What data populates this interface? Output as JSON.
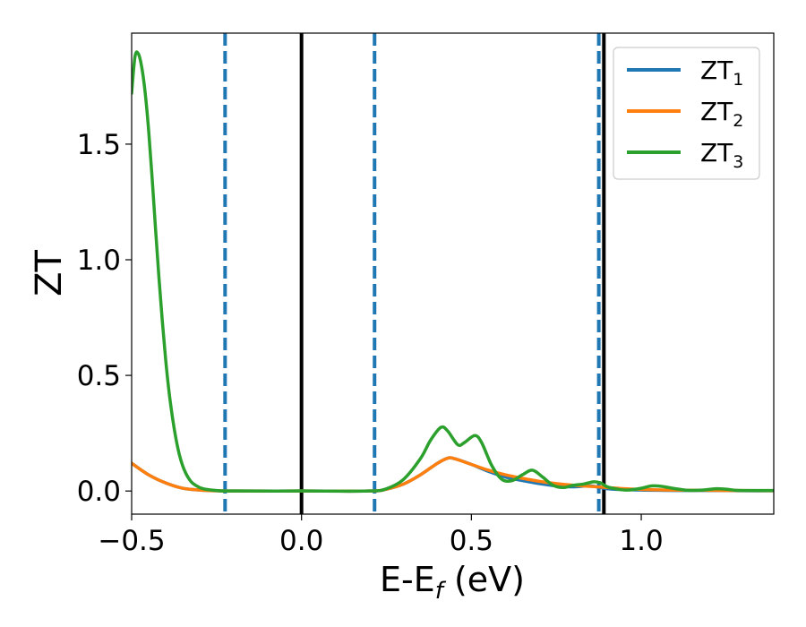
{
  "chart_data": {
    "type": "line",
    "title": "",
    "xlabel": "E-E",
    "xlabel_sub": "f",
    "xlabel_unit": " (eV)",
    "ylabel": "ZT",
    "xlim": [
      -0.5,
      1.39
    ],
    "ylim": [
      -0.1,
      1.98
    ],
    "xticks": [
      -0.5,
      0.0,
      0.5,
      1.0
    ],
    "xtick_labels": [
      "−0.5",
      "0.0",
      "0.5",
      "1.0"
    ],
    "yticks": [
      0.0,
      0.5,
      1.0,
      1.5
    ],
    "ytick_labels": [
      "0.0",
      "0.5",
      "1.0",
      "1.5"
    ],
    "grid": false,
    "legend_position": "top-right",
    "vertical_lines": [
      {
        "x": -0.225,
        "style": "dashed",
        "color": "#1f77b4"
      },
      {
        "x": 0.0,
        "style": "solid",
        "color": "#000000"
      },
      {
        "x": 0.215,
        "style": "dashed",
        "color": "#1f77b4"
      },
      {
        "x": 0.875,
        "style": "dashed",
        "color": "#1f77b4"
      },
      {
        "x": 0.89,
        "style": "solid",
        "color": "#000000"
      }
    ],
    "series": [
      {
        "name": "ZT",
        "sub": "1",
        "color": "#1f77b4",
        "x": [
          -0.5,
          -0.45,
          -0.4,
          -0.35,
          -0.3,
          -0.25,
          -0.2,
          0.0,
          0.2,
          0.25,
          0.3,
          0.35,
          0.4,
          0.43,
          0.45,
          0.5,
          0.55,
          0.6,
          0.65,
          0.7,
          0.75,
          0.8,
          0.85,
          0.9,
          0.95,
          1.0,
          1.05,
          1.1,
          1.15,
          1.2,
          1.25,
          1.3,
          1.39
        ],
        "y": [
          0.12,
          0.07,
          0.035,
          0.012,
          0.004,
          0.001,
          0.0,
          0.0,
          0.0,
          0.008,
          0.03,
          0.07,
          0.12,
          0.142,
          0.14,
          0.115,
          0.085,
          0.06,
          0.045,
          0.032,
          0.022,
          0.018,
          0.022,
          0.01,
          0.006,
          0.004,
          0.003,
          0.002,
          0.002,
          0.002,
          0.002,
          0.001,
          0.001
        ]
      },
      {
        "name": "ZT",
        "sub": "2",
        "color": "#ff7f0e",
        "x": [
          -0.5,
          -0.45,
          -0.4,
          -0.35,
          -0.3,
          -0.25,
          -0.2,
          0.0,
          0.2,
          0.25,
          0.3,
          0.35,
          0.4,
          0.43,
          0.45,
          0.5,
          0.55,
          0.6,
          0.65,
          0.7,
          0.75,
          0.8,
          0.85,
          0.9,
          0.95,
          1.0,
          1.05,
          1.1,
          1.15,
          1.2,
          1.25,
          1.3,
          1.39
        ],
        "y": [
          0.12,
          0.07,
          0.035,
          0.012,
          0.004,
          0.001,
          0.0,
          0.0,
          0.0,
          0.008,
          0.03,
          0.07,
          0.12,
          0.142,
          0.14,
          0.115,
          0.09,
          0.07,
          0.055,
          0.042,
          0.032,
          0.025,
          0.02,
          0.015,
          0.01,
          0.007,
          0.005,
          0.004,
          0.003,
          0.003,
          0.002,
          0.002,
          0.001
        ]
      },
      {
        "name": "ZT",
        "sub": "3",
        "color": "#2ca02c",
        "x": [
          -0.5,
          -0.49,
          -0.48,
          -0.47,
          -0.46,
          -0.45,
          -0.44,
          -0.43,
          -0.42,
          -0.41,
          -0.4,
          -0.39,
          -0.38,
          -0.37,
          -0.36,
          -0.35,
          -0.34,
          -0.33,
          -0.32,
          -0.3,
          -0.28,
          -0.25,
          -0.2,
          0.0,
          0.2,
          0.25,
          0.3,
          0.35,
          0.38,
          0.41,
          0.43,
          0.46,
          0.48,
          0.51,
          0.53,
          0.56,
          0.59,
          0.62,
          0.65,
          0.68,
          0.71,
          0.74,
          0.77,
          0.8,
          0.83,
          0.86,
          0.88,
          0.9,
          0.93,
          0.96,
          1.0,
          1.03,
          1.06,
          1.1,
          1.14,
          1.18,
          1.22,
          1.25,
          1.28,
          1.32,
          1.39
        ],
        "y": [
          1.72,
          1.88,
          1.89,
          1.83,
          1.72,
          1.56,
          1.36,
          1.14,
          0.93,
          0.74,
          0.57,
          0.43,
          0.32,
          0.23,
          0.16,
          0.11,
          0.075,
          0.05,
          0.033,
          0.015,
          0.007,
          0.002,
          0.0,
          0.0,
          0.0,
          0.01,
          0.05,
          0.14,
          0.22,
          0.275,
          0.26,
          0.2,
          0.21,
          0.24,
          0.21,
          0.11,
          0.05,
          0.045,
          0.07,
          0.09,
          0.06,
          0.025,
          0.015,
          0.025,
          0.03,
          0.04,
          0.035,
          0.018,
          0.008,
          0.004,
          0.012,
          0.022,
          0.02,
          0.01,
          0.003,
          0.004,
          0.01,
          0.008,
          0.003,
          0.002,
          0.002
        ]
      }
    ]
  }
}
